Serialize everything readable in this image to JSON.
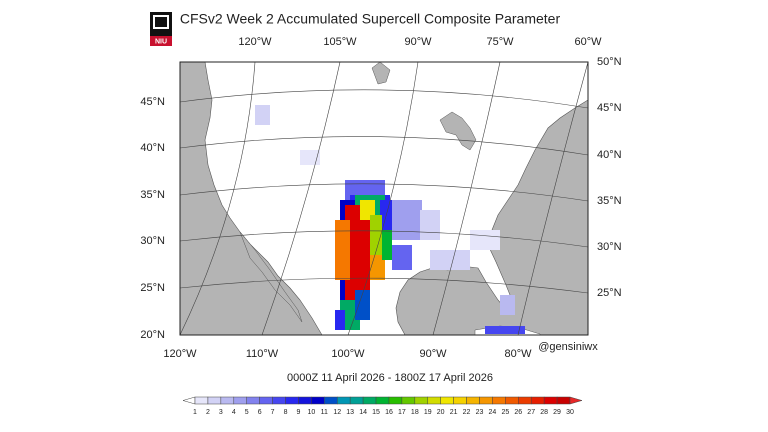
{
  "title": "CFSv2 Week 2 Accumulated Supercell Composite Parameter",
  "logo": "NIU",
  "top_lon_labels": [
    "120°W",
    "105°W",
    "90°W",
    "75°W",
    "60°W"
  ],
  "bottom_lon_labels": [
    "120°W",
    "110°W",
    "100°W",
    "90°W",
    "80°W"
  ],
  "left_lat_labels": [
    "45°N",
    "40°N",
    "35°N",
    "30°N",
    "25°N",
    "20°N"
  ],
  "right_lat_labels": [
    "50°N",
    "45°N",
    "40°N",
    "35°N",
    "30°N",
    "25°N"
  ],
  "credit": "@gensiniwx",
  "valid_period": "0000Z 11  April  2026  - 1800Z 17  April  2026",
  "colorbar": {
    "labels": [
      "1",
      "2",
      "3",
      "4",
      "5",
      "6",
      "7",
      "8",
      "9",
      "10",
      "11",
      "12",
      "13",
      "14",
      "15",
      "16",
      "17",
      "18",
      "19",
      "20",
      "21",
      "22",
      "23",
      "24",
      "25",
      "26",
      "27",
      "28",
      "29",
      "30"
    ]
  }
}
